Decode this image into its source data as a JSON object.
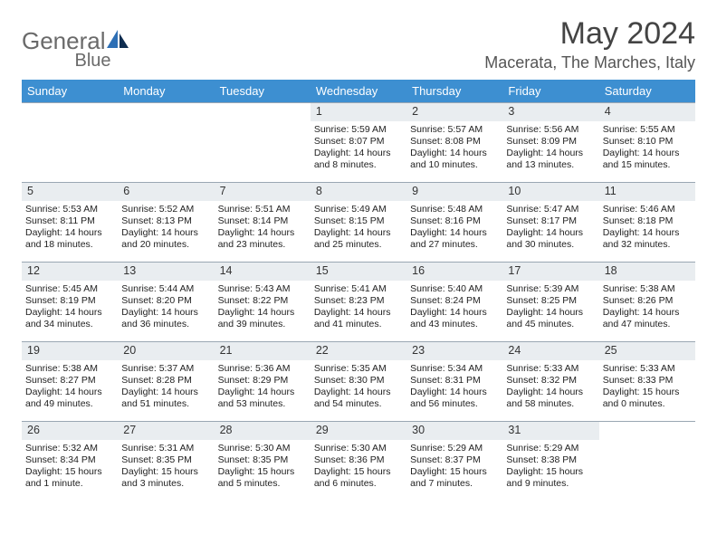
{
  "logo": {
    "textGray": "General",
    "textBlue": "Blue"
  },
  "monthTitle": "May 2024",
  "location": "Macerata, The Marches, Italy",
  "colors": {
    "headerBg": "#3d8fd1",
    "headerText": "#ffffff",
    "dayBandBg": "#e9edf0",
    "cellBorder": "#9aa7b3",
    "bodyText": "#222222",
    "titleText": "#444444",
    "logoGray": "#6a6a6a",
    "logoBlue": "#2d6fb5"
  },
  "dayHeaders": [
    "Sunday",
    "Monday",
    "Tuesday",
    "Wednesday",
    "Thursday",
    "Friday",
    "Saturday"
  ],
  "startCol": 3,
  "labels": {
    "sunrise": "Sunrise: ",
    "sunset": "Sunset: ",
    "daylight": "Daylight: "
  },
  "days": [
    {
      "n": 1,
      "sunrise": "5:59 AM",
      "sunset": "8:07 PM",
      "daylight": "14 hours and 8 minutes."
    },
    {
      "n": 2,
      "sunrise": "5:57 AM",
      "sunset": "8:08 PM",
      "daylight": "14 hours and 10 minutes."
    },
    {
      "n": 3,
      "sunrise": "5:56 AM",
      "sunset": "8:09 PM",
      "daylight": "14 hours and 13 minutes."
    },
    {
      "n": 4,
      "sunrise": "5:55 AM",
      "sunset": "8:10 PM",
      "daylight": "14 hours and 15 minutes."
    },
    {
      "n": 5,
      "sunrise": "5:53 AM",
      "sunset": "8:11 PM",
      "daylight": "14 hours and 18 minutes."
    },
    {
      "n": 6,
      "sunrise": "5:52 AM",
      "sunset": "8:13 PM",
      "daylight": "14 hours and 20 minutes."
    },
    {
      "n": 7,
      "sunrise": "5:51 AM",
      "sunset": "8:14 PM",
      "daylight": "14 hours and 23 minutes."
    },
    {
      "n": 8,
      "sunrise": "5:49 AM",
      "sunset": "8:15 PM",
      "daylight": "14 hours and 25 minutes."
    },
    {
      "n": 9,
      "sunrise": "5:48 AM",
      "sunset": "8:16 PM",
      "daylight": "14 hours and 27 minutes."
    },
    {
      "n": 10,
      "sunrise": "5:47 AM",
      "sunset": "8:17 PM",
      "daylight": "14 hours and 30 minutes."
    },
    {
      "n": 11,
      "sunrise": "5:46 AM",
      "sunset": "8:18 PM",
      "daylight": "14 hours and 32 minutes."
    },
    {
      "n": 12,
      "sunrise": "5:45 AM",
      "sunset": "8:19 PM",
      "daylight": "14 hours and 34 minutes."
    },
    {
      "n": 13,
      "sunrise": "5:44 AM",
      "sunset": "8:20 PM",
      "daylight": "14 hours and 36 minutes."
    },
    {
      "n": 14,
      "sunrise": "5:43 AM",
      "sunset": "8:22 PM",
      "daylight": "14 hours and 39 minutes."
    },
    {
      "n": 15,
      "sunrise": "5:41 AM",
      "sunset": "8:23 PM",
      "daylight": "14 hours and 41 minutes."
    },
    {
      "n": 16,
      "sunrise": "5:40 AM",
      "sunset": "8:24 PM",
      "daylight": "14 hours and 43 minutes."
    },
    {
      "n": 17,
      "sunrise": "5:39 AM",
      "sunset": "8:25 PM",
      "daylight": "14 hours and 45 minutes."
    },
    {
      "n": 18,
      "sunrise": "5:38 AM",
      "sunset": "8:26 PM",
      "daylight": "14 hours and 47 minutes."
    },
    {
      "n": 19,
      "sunrise": "5:38 AM",
      "sunset": "8:27 PM",
      "daylight": "14 hours and 49 minutes."
    },
    {
      "n": 20,
      "sunrise": "5:37 AM",
      "sunset": "8:28 PM",
      "daylight": "14 hours and 51 minutes."
    },
    {
      "n": 21,
      "sunrise": "5:36 AM",
      "sunset": "8:29 PM",
      "daylight": "14 hours and 53 minutes."
    },
    {
      "n": 22,
      "sunrise": "5:35 AM",
      "sunset": "8:30 PM",
      "daylight": "14 hours and 54 minutes."
    },
    {
      "n": 23,
      "sunrise": "5:34 AM",
      "sunset": "8:31 PM",
      "daylight": "14 hours and 56 minutes."
    },
    {
      "n": 24,
      "sunrise": "5:33 AM",
      "sunset": "8:32 PM",
      "daylight": "14 hours and 58 minutes."
    },
    {
      "n": 25,
      "sunrise": "5:33 AM",
      "sunset": "8:33 PM",
      "daylight": "15 hours and 0 minutes."
    },
    {
      "n": 26,
      "sunrise": "5:32 AM",
      "sunset": "8:34 PM",
      "daylight": "15 hours and 1 minute."
    },
    {
      "n": 27,
      "sunrise": "5:31 AM",
      "sunset": "8:35 PM",
      "daylight": "15 hours and 3 minutes."
    },
    {
      "n": 28,
      "sunrise": "5:30 AM",
      "sunset": "8:35 PM",
      "daylight": "15 hours and 5 minutes."
    },
    {
      "n": 29,
      "sunrise": "5:30 AM",
      "sunset": "8:36 PM",
      "daylight": "15 hours and 6 minutes."
    },
    {
      "n": 30,
      "sunrise": "5:29 AM",
      "sunset": "8:37 PM",
      "daylight": "15 hours and 7 minutes."
    },
    {
      "n": 31,
      "sunrise": "5:29 AM",
      "sunset": "8:38 PM",
      "daylight": "15 hours and 9 minutes."
    }
  ]
}
